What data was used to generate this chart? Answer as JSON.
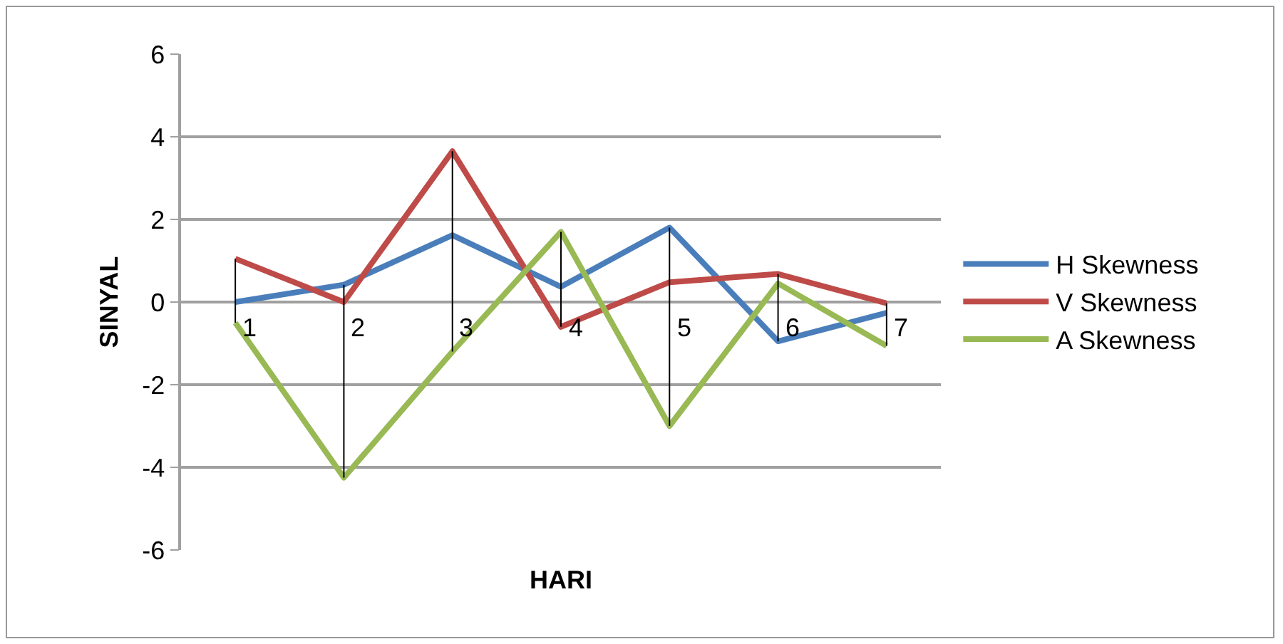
{
  "chart_data": {
    "type": "line",
    "xlabel": "HARI",
    "ylabel": "SINYAL",
    "categories": [
      "1",
      "2",
      "3",
      "4",
      "5",
      "6",
      "7"
    ],
    "series": [
      {
        "name": "H Skewness",
        "color": "#4a7ebb",
        "values": [
          0,
          0.42,
          1.62,
          0.37,
          1.8,
          -0.95,
          -0.26
        ]
      },
      {
        "name": "V Skewness",
        "color": "#be4b48",
        "values": [
          1.05,
          0,
          3.65,
          -0.6,
          0.48,
          0.68,
          -0.03
        ]
      },
      {
        "name": "A Skewness",
        "color": "#98b954",
        "values": [
          -0.5,
          -4.25,
          -1.2,
          1.7,
          -3.0,
          0.45,
          -1.06
        ]
      }
    ],
    "ylim": [
      -6,
      6
    ],
    "yticks": [
      -6,
      -4,
      -2,
      0,
      2,
      4,
      6
    ],
    "grid": "y",
    "legend": "right",
    "marker": "none",
    "line_style": "solid"
  }
}
